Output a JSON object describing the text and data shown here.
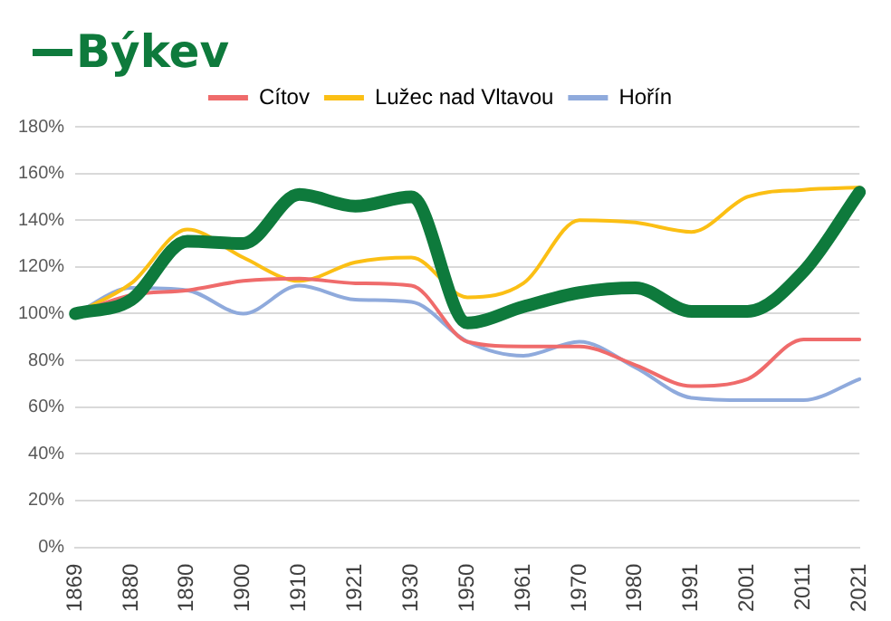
{
  "chart_data": {
    "type": "line",
    "categories": [
      "1869",
      "1880",
      "1890",
      "1900",
      "1910",
      "1921",
      "1930",
      "1950",
      "1961",
      "1970",
      "1980",
      "1991",
      "2001",
      "2011",
      "2021"
    ],
    "series": [
      {
        "name": "Cítov",
        "color": "#ef6b6b",
        "values": [
          100,
          108,
          110,
          114,
          115,
          113,
          112,
          88,
          86,
          86,
          78,
          69,
          72,
          89,
          89
        ]
      },
      {
        "name": "Lužec nad Vltavou",
        "color": "#fbbf14",
        "values": [
          100,
          113,
          136,
          124,
          114,
          122,
          124,
          107,
          113,
          140,
          139,
          135,
          150,
          153,
          154
        ]
      },
      {
        "name": "Hořín",
        "color": "#8faadc",
        "values": [
          100,
          111,
          110,
          100,
          112,
          106,
          105,
          88,
          82,
          88,
          77,
          64,
          63,
          63,
          72
        ]
      },
      {
        "name": "Býkev",
        "color": "#0e7a3c",
        "values": [
          100,
          106,
          131,
          130,
          151,
          146,
          150,
          96,
          103,
          109,
          111,
          101,
          101,
          118,
          152
        ]
      }
    ],
    "ylim": [
      0,
      180
    ],
    "yticks": [
      {
        "value": 0,
        "label": "0%"
      },
      {
        "value": 20,
        "label": "20%"
      },
      {
        "value": 40,
        "label": "40%"
      },
      {
        "value": 60,
        "label": "60%"
      },
      {
        "value": 80,
        "label": "80%"
      },
      {
        "value": 100,
        "label": "100%"
      },
      {
        "value": 120,
        "label": "120%"
      },
      {
        "value": 140,
        "label": "140%"
      },
      {
        "value": 160,
        "label": "160%"
      },
      {
        "value": 180,
        "label": "180%"
      }
    ],
    "grid": "y",
    "legend": "top",
    "marker": "none",
    "line_style": "solid"
  }
}
